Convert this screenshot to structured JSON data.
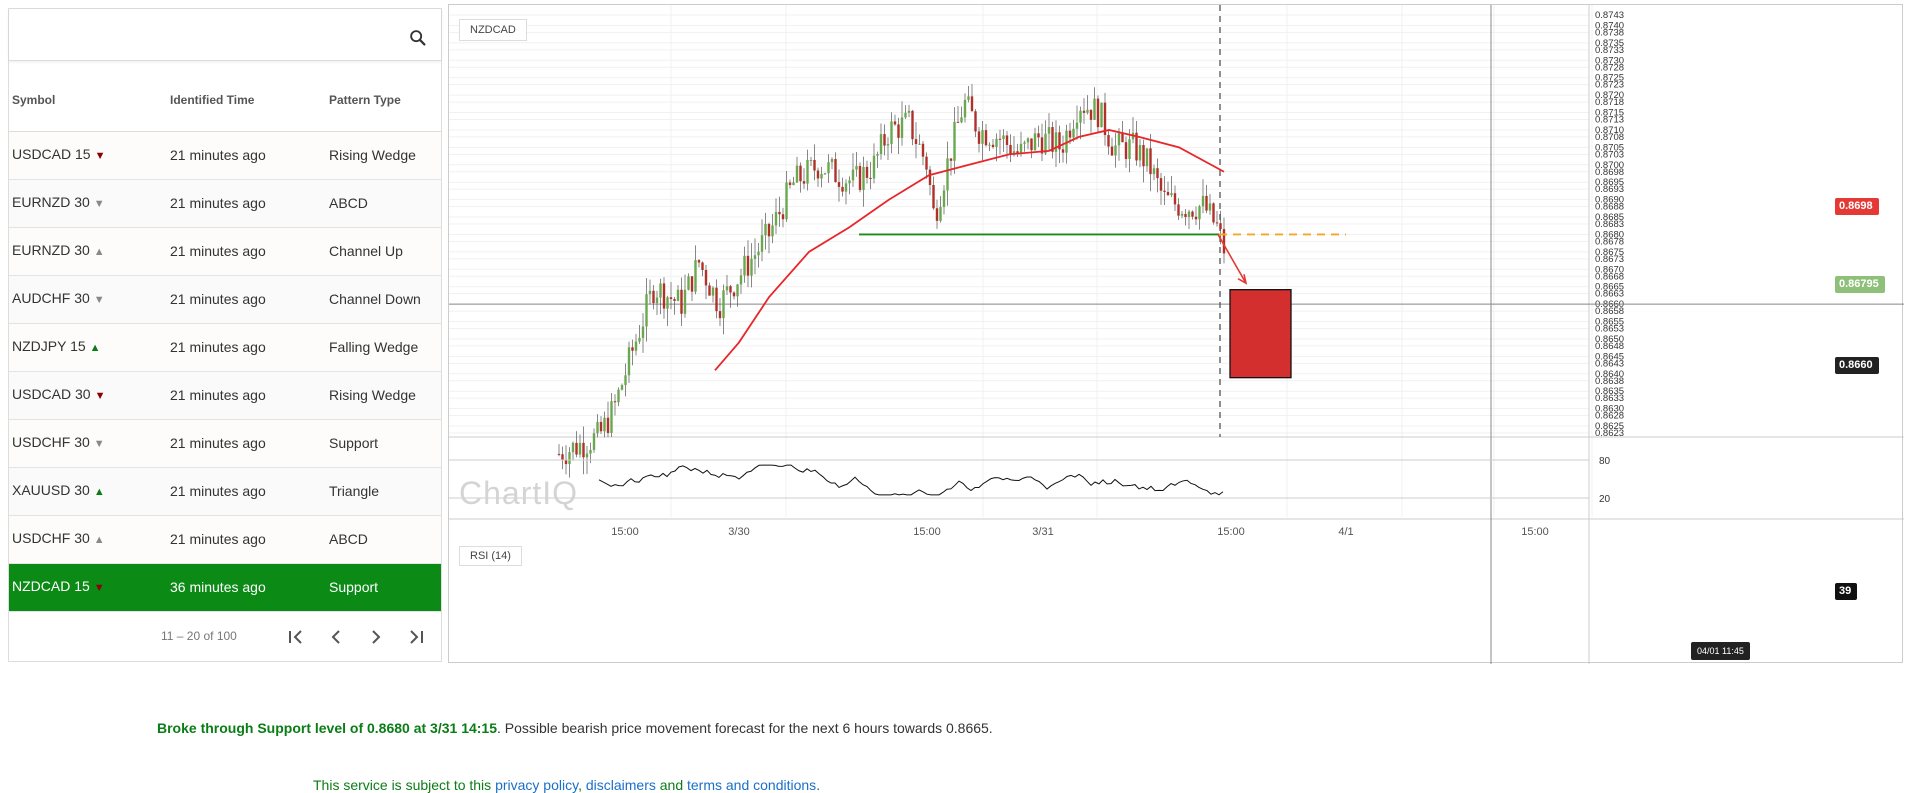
{
  "search": {
    "placeholder": ""
  },
  "table": {
    "headers": [
      "Symbol",
      "Identified Time",
      "Pattern Type"
    ],
    "rows": [
      {
        "symbol": "USDCAD 15",
        "direction": "down",
        "time": "21 minutes ago",
        "pattern": "Rising Wedge"
      },
      {
        "symbol": "EURNZD 30",
        "direction": "down-gray",
        "time": "21 minutes ago",
        "pattern": "ABCD"
      },
      {
        "symbol": "EURNZD 30",
        "direction": "up-gray",
        "time": "21 minutes ago",
        "pattern": "Channel Up"
      },
      {
        "symbol": "AUDCHF 30",
        "direction": "down-gray",
        "time": "21 minutes ago",
        "pattern": "Channel Down"
      },
      {
        "symbol": "NZDJPY 15",
        "direction": "up",
        "time": "21 minutes ago",
        "pattern": "Falling Wedge"
      },
      {
        "symbol": "USDCAD 30",
        "direction": "down",
        "time": "21 minutes ago",
        "pattern": "Rising Wedge"
      },
      {
        "symbol": "USDCHF 30",
        "direction": "down-gray",
        "time": "21 minutes ago",
        "pattern": "Support"
      },
      {
        "symbol": "XAUUSD 30",
        "direction": "up",
        "time": "21 minutes ago",
        "pattern": "Triangle"
      },
      {
        "symbol": "USDCHF 30",
        "direction": "up-gray",
        "time": "21 minutes ago",
        "pattern": "ABCD"
      },
      {
        "symbol": "NZDCAD 15",
        "direction": "down",
        "time": "36 minutes ago",
        "pattern": "Support",
        "selected": true
      }
    ]
  },
  "pager": {
    "range": "11 – 20 of 100"
  },
  "chart": {
    "symbol": "NZDCAD",
    "rsi_label": "RSI (14)",
    "watermark": "ChartIQ",
    "price_ticks": [
      "0.8743",
      "0.8740",
      "0.8738",
      "0.8735",
      "0.8733",
      "0.8730",
      "0.8728",
      "0.8725",
      "0.8723",
      "0.8720",
      "0.8718",
      "0.8715",
      "0.8713",
      "0.8710",
      "0.8708",
      "0.8705",
      "0.8703",
      "0.8700",
      "0.8698",
      "0.8695",
      "0.8693",
      "0.8690",
      "0.8688",
      "0.8685",
      "0.8683",
      "0.8680",
      "0.8678",
      "0.8675",
      "0.8673",
      "0.8670",
      "0.8668",
      "0.8665",
      "0.8663",
      "0.8660",
      "0.8658",
      "0.8655",
      "0.8653",
      "0.8650",
      "0.8648",
      "0.8645",
      "0.8643",
      "0.8640",
      "0.8638",
      "0.8635",
      "0.8633",
      "0.8630",
      "0.8628",
      "0.8625",
      "0.8623"
    ],
    "time_labels": [
      "15:00",
      "3/30",
      "15:00",
      "3/31",
      "15:00",
      "4/1",
      "15:00"
    ],
    "rsi_levels": [
      "80",
      "20"
    ],
    "rsi_value": "39",
    "price_badges": {
      "ma": "0.8698",
      "last": "0.86795",
      "crosshair": "0.8660"
    },
    "crosshair_date": "04/01 11:45",
    "support_level": 0.868,
    "target_level": 0.8665,
    "colors": {
      "up": "#6aa84f",
      "down": "#b0302a",
      "ma": "#e8262a",
      "support": "#1e8a1e",
      "target": "#f5a623",
      "forecast_box": "#d32f2f",
      "selected_row": "#0b8a16"
    }
  },
  "message": {
    "highlight": "Broke through Support level of 0.8680 at 3/31 14:15",
    "rest": ". Possible bearish price movement forecast for the next 6 hours towards 0.8665."
  },
  "footer": {
    "prefix": "This service is subject to this ",
    "privacy": "privacy policy",
    "sep1": ", ",
    "disclaimers": "disclaimers",
    "sep2": " and ",
    "terms": "terms and conditions",
    "suffix": "."
  }
}
